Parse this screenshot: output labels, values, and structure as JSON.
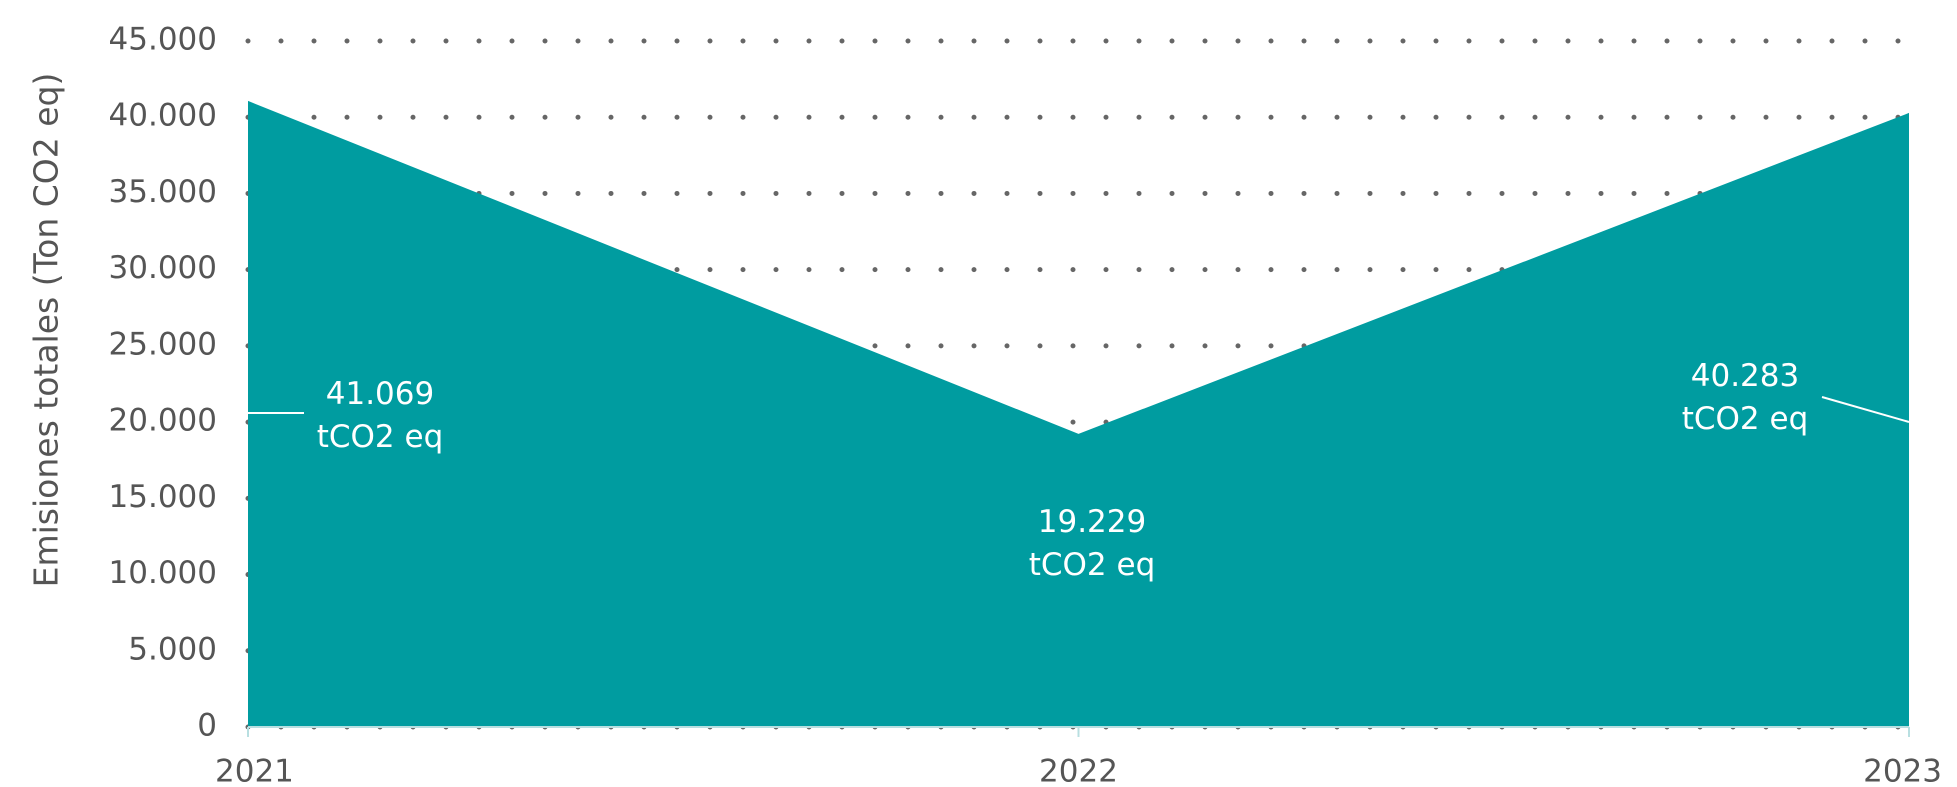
{
  "chart_data": {
    "type": "area",
    "y_label": "Emisiones totales (Ton CO2 eq)",
    "categories": [
      "2021",
      "2022",
      "2023"
    ],
    "values": [
      41069,
      19229,
      40283
    ],
    "value_labels": [
      "41.069\ntCO2 eq",
      "19.229\ntCO2 eq",
      "40.283\ntCO2 eq"
    ],
    "color": "#009ca0",
    "ylim": [
      0,
      45000
    ],
    "yticks": [
      0,
      {
        "value": 5000,
        "label": "5.000"
      },
      {
        "value": 10000,
        "label": "10.000"
      },
      {
        "value": 15000,
        "label": "15.000"
      },
      {
        "value": 20000,
        "label": "20.000"
      },
      {
        "value": 25000,
        "label": "25.000"
      },
      {
        "value": 30000,
        "label": "30.000"
      },
      {
        "value": 35000,
        "label": "35.000"
      },
      {
        "value": 40000,
        "label": "40.000"
      },
      {
        "value": 45000,
        "label": "45.000"
      }
    ],
    "grid": true
  }
}
